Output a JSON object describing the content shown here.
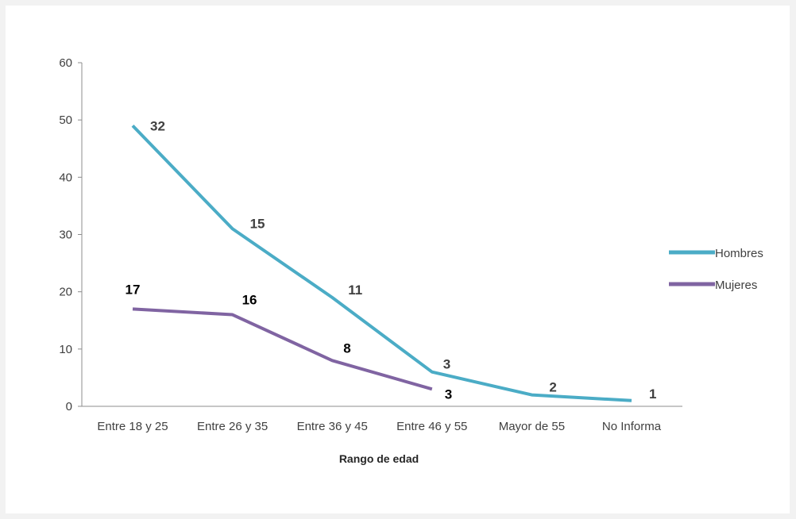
{
  "chart_data": {
    "type": "line",
    "categories": [
      "Entre 18 y 25",
      "Entre 26 y 35",
      "Entre 36 y 45",
      "Entre 46 y 55",
      "Mayor de 55",
      "No Informa"
    ],
    "xlabel": "Rango de edad",
    "ylabel": "",
    "ylim": [
      0,
      60
    ],
    "yticks": [
      0,
      10,
      20,
      30,
      40,
      50,
      60
    ],
    "grid": false,
    "legend": "right",
    "series": [
      {
        "name": "Hombres",
        "color": "#4bacc6",
        "values": [
          49,
          31,
          19,
          6,
          2,
          1
        ],
        "labels": [
          "32",
          "15",
          "11",
          "3",
          "2",
          "1"
        ],
        "label_color": "#404040"
      },
      {
        "name": "Mujeres",
        "color": "#8064a2",
        "values": [
          17,
          16,
          8,
          3,
          null,
          null
        ],
        "labels": [
          "17",
          "16",
          "8",
          "3",
          null,
          null
        ],
        "label_color": "#000000"
      }
    ]
  }
}
